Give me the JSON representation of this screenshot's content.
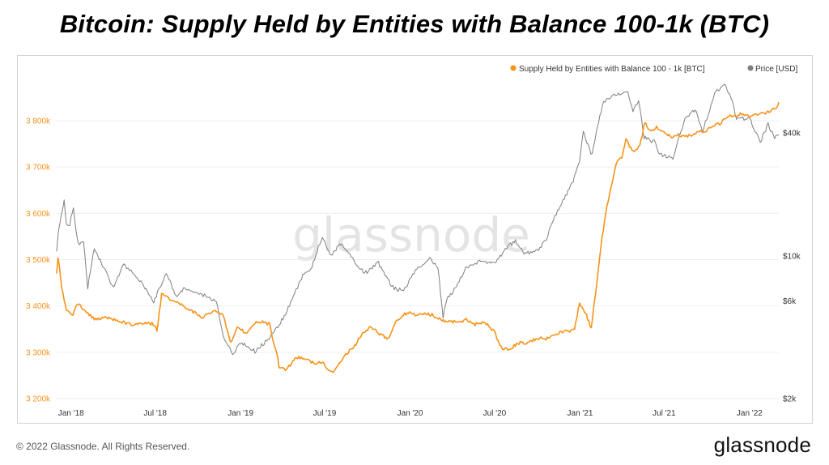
{
  "title": "Bitcoin: Supply Held by Entities with Balance 100-1k (BTC)",
  "footer": {
    "copyright": "© 2022 Glassnode. All Rights Reserved.",
    "brand": "glassnode"
  },
  "watermark": "glassnode",
  "colors": {
    "supply": "#f7931a",
    "price": "#7f7f7f",
    "grid": "#eeeeee",
    "left_axis_text": "#f7931a",
    "right_axis_text": "#333333"
  },
  "chart_data": {
    "type": "line",
    "legend": [
      {
        "name": "Supply Held by Entities with Balance 100 - 1k [BTC]",
        "color": "#f7931a"
      },
      {
        "name": "Price [USD]",
        "color": "#7f7f7f"
      }
    ],
    "legend_position": "top-right",
    "x_ticks": [
      "Jan '18",
      "Jul '18",
      "Jan '19",
      "Jul '19",
      "Jan '20",
      "Jul '20",
      "Jan '21",
      "Jul '21",
      "Jan '22"
    ],
    "x_range": [
      "2017-12-01",
      "2022-03-05"
    ],
    "y_left": {
      "ticks": [
        3200000,
        3300000,
        3400000,
        3500000,
        3600000,
        3700000,
        3800000
      ],
      "tick_labels": [
        "3 200k",
        "3 300k",
        "3 400k",
        "3 500k",
        "3 600k",
        "3 700k",
        "3 800k"
      ],
      "range": [
        3200000,
        3800000
      ],
      "unit": "BTC"
    },
    "y_right": {
      "scale": "log",
      "ticks": [
        2000,
        6000,
        10000,
        40000
      ],
      "tick_labels": [
        "$2k",
        "$6k",
        "$10k",
        "$40k"
      ],
      "unit": "USD"
    },
    "grid": "horizontal",
    "series": [
      {
        "name": "Supply Held by Entities with Balance 100 - 1k [BTC]",
        "axis": "left",
        "x": [
          "2017-12-01",
          "2017-12-04",
          "2017-12-12",
          "2017-12-22",
          "2018-01-05",
          "2018-01-15",
          "2018-02-01",
          "2018-02-20",
          "2018-03-15",
          "2018-04-10",
          "2018-05-10",
          "2018-06-10",
          "2018-06-30",
          "2018-07-05",
          "2018-07-15",
          "2018-08-10",
          "2018-09-10",
          "2018-10-10",
          "2018-11-10",
          "2018-11-25",
          "2018-12-10",
          "2018-12-25",
          "2019-01-15",
          "2019-02-01",
          "2019-02-20",
          "2019-03-05",
          "2019-03-10",
          "2019-03-20",
          "2019-03-25",
          "2019-04-10",
          "2019-05-01",
          "2019-05-20",
          "2019-06-10",
          "2019-06-25",
          "2019-07-05",
          "2019-07-20",
          "2019-08-10",
          "2019-09-01",
          "2019-09-20",
          "2019-10-10",
          "2019-10-25",
          "2019-11-15",
          "2019-12-01",
          "2019-12-15",
          "2019-12-31",
          "2020-01-15",
          "2020-02-01",
          "2020-02-20",
          "2020-03-10",
          "2020-03-20",
          "2020-04-10",
          "2020-05-01",
          "2020-05-20",
          "2020-06-10",
          "2020-06-30",
          "2020-07-15",
          "2020-08-01",
          "2020-08-20",
          "2020-09-10",
          "2020-10-01",
          "2020-10-20",
          "2020-11-10",
          "2020-11-25",
          "2020-12-10",
          "2020-12-20",
          "2020-12-31",
          "2021-01-08",
          "2021-01-15",
          "2021-01-25",
          "2021-02-05",
          "2021-02-15",
          "2021-02-25",
          "2021-03-10",
          "2021-03-20",
          "2021-04-01",
          "2021-04-10",
          "2021-04-20",
          "2021-05-01",
          "2021-05-10",
          "2021-05-20",
          "2021-06-01",
          "2021-06-15",
          "2021-07-01",
          "2021-07-15",
          "2021-08-01",
          "2021-08-15",
          "2021-09-01",
          "2021-09-15",
          "2021-10-01",
          "2021-10-20",
          "2021-11-01",
          "2021-11-15",
          "2021-12-01",
          "2021-12-15",
          "2022-01-01",
          "2022-01-15",
          "2022-02-01",
          "2022-02-15",
          "2022-03-01",
          "2022-03-05"
        ],
        "values": [
          3470000,
          3505000,
          3440000,
          3390000,
          3380000,
          3405000,
          3390000,
          3370000,
          3375000,
          3370000,
          3360000,
          3365000,
          3360000,
          3345000,
          3425000,
          3410000,
          3395000,
          3375000,
          3390000,
          3380000,
          3320000,
          3355000,
          3340000,
          3365000,
          3365000,
          3360000,
          3330000,
          3295000,
          3268000,
          3262000,
          3290000,
          3285000,
          3275000,
          3280000,
          3265000,
          3255000,
          3290000,
          3310000,
          3340000,
          3355000,
          3340000,
          3330000,
          3365000,
          3380000,
          3385000,
          3380000,
          3385000,
          3380000,
          3370000,
          3368000,
          3365000,
          3370000,
          3360000,
          3365000,
          3345000,
          3310000,
          3305000,
          3320000,
          3320000,
          3330000,
          3330000,
          3340000,
          3345000,
          3345000,
          3350000,
          3405000,
          3390000,
          3380000,
          3350000,
          3440000,
          3530000,
          3600000,
          3660000,
          3710000,
          3720000,
          3760000,
          3740000,
          3735000,
          3745000,
          3795000,
          3780000,
          3785000,
          3775000,
          3765000,
          3770000,
          3765000,
          3770000,
          3775000,
          3780000,
          3790000,
          3795000,
          3810000,
          3810000,
          3815000,
          3810000,
          3815000,
          3815000,
          3820000,
          3830000,
          3840000
        ]
      },
      {
        "name": "Price [USD]",
        "axis": "right",
        "x": [
          "2017-12-01",
          "2017-12-05",
          "2017-12-17",
          "2017-12-22",
          "2017-12-29",
          "2018-01-06",
          "2018-01-16",
          "2018-01-28",
          "2018-02-06",
          "2018-02-20",
          "2018-03-05",
          "2018-04-01",
          "2018-04-25",
          "2018-05-10",
          "2018-06-01",
          "2018-06-28",
          "2018-07-25",
          "2018-08-15",
          "2018-09-05",
          "2018-10-01",
          "2018-11-10",
          "2018-11-25",
          "2018-12-15",
          "2019-01-01",
          "2019-02-01",
          "2019-03-01",
          "2019-04-05",
          "2019-05-15",
          "2019-06-01",
          "2019-06-26",
          "2019-07-15",
          "2019-08-05",
          "2019-08-30",
          "2019-09-25",
          "2019-10-25",
          "2019-11-25",
          "2019-12-18",
          "2020-01-15",
          "2020-02-12",
          "2020-03-01",
          "2020-03-12",
          "2020-03-20",
          "2020-04-10",
          "2020-04-30",
          "2020-06-01",
          "2020-07-01",
          "2020-07-27",
          "2020-08-15",
          "2020-09-05",
          "2020-10-01",
          "2020-10-21",
          "2020-11-05",
          "2020-11-25",
          "2020-12-17",
          "2020-12-31",
          "2021-01-08",
          "2021-01-27",
          "2021-02-10",
          "2021-02-21",
          "2021-03-13",
          "2021-04-14",
          "2021-04-25",
          "2021-05-07",
          "2021-05-19",
          "2021-06-10",
          "2021-06-22",
          "2021-07-20",
          "2021-08-15",
          "2021-09-06",
          "2021-09-22",
          "2021-10-10",
          "2021-10-20",
          "2021-11-10",
          "2021-11-25",
          "2021-12-04",
          "2021-12-20",
          "2022-01-01",
          "2022-01-10",
          "2022-01-24",
          "2022-02-10",
          "2022-02-24",
          "2022-03-05"
        ],
        "values": [
          10500,
          13000,
          19000,
          14500,
          14300,
          17000,
          11500,
          11500,
          7000,
          11000,
          9500,
          7000,
          9000,
          8500,
          7500,
          6000,
          8200,
          6300,
          7000,
          6600,
          6000,
          4000,
          3300,
          3800,
          3400,
          3900,
          5000,
          8000,
          8500,
          12500,
          10000,
          11500,
          9700,
          8200,
          9200,
          7000,
          6700,
          8700,
          9700,
          8800,
          5000,
          6200,
          7000,
          8800,
          9500,
          9200,
          11000,
          11800,
          10200,
          10600,
          12000,
          15300,
          18500,
          23000,
          29000,
          40000,
          31000,
          45000,
          57000,
          61000,
          64000,
          51000,
          58000,
          38000,
          36000,
          31500,
          30000,
          47000,
          52000,
          40500,
          55000,
          64000,
          68000,
          57000,
          47000,
          47000,
          47000,
          42000,
          36000,
          44000,
          38000,
          39000
        ]
      }
    ]
  }
}
